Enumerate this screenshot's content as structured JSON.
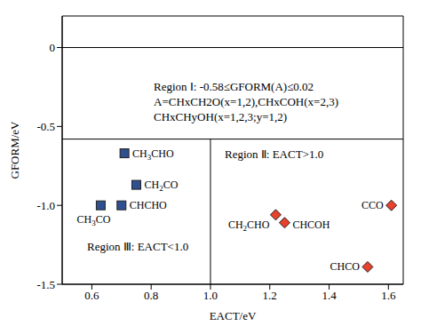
{
  "chart_data": {
    "type": "scatter",
    "x_label": "EACT/eV",
    "y_label": "GFORM/eV",
    "xlim": [
      0.5,
      1.65
    ],
    "xticks": [
      0.6,
      0.8,
      {
        "value": 1,
        "label": "1.0"
      },
      1.2,
      1.4,
      1.6
    ],
    "ylim": [
      -1.5,
      0.2
    ],
    "yticks": [
      -1.5,
      {
        "value": -1,
        "label": "-1.0"
      },
      -0.5,
      0
    ],
    "hlines": [
      0,
      -0.58
    ],
    "vline": 1,
    "annotations": [
      "Region Ⅰ: -0.58≤GFORM(A)≤0.02",
      "A=CHxCH2O(x=1,2),CHxCOH(x=2,3)",
      "CHxCHyOH(x=1,2,3;y=1,2)",
      "Region Ⅱ: EACT>1.0",
      "Region Ⅲ: EACT<1.0"
    ],
    "series": [
      {
        "color": "#2f4f8f",
        "marker": "square",
        "x": [
          0.71,
          0.75,
          0.7,
          0.63
        ],
        "values": [
          -0.67,
          -0.87,
          -1.0,
          -1.0
        ],
        "labels": [
          "CH3CHO",
          "CH2CO",
          "CHCHO",
          "CH3CO"
        ]
      },
      {
        "color": "#e8412c",
        "marker": "diamond",
        "x": [
          1.22,
          1.25,
          1.61,
          1.53
        ],
        "values": [
          -1.06,
          -1.11,
          -1.0,
          -1.39
        ],
        "labels": [
          "CH2CHO",
          "CHCOH",
          "CCO",
          "CHCO"
        ]
      }
    ]
  }
}
